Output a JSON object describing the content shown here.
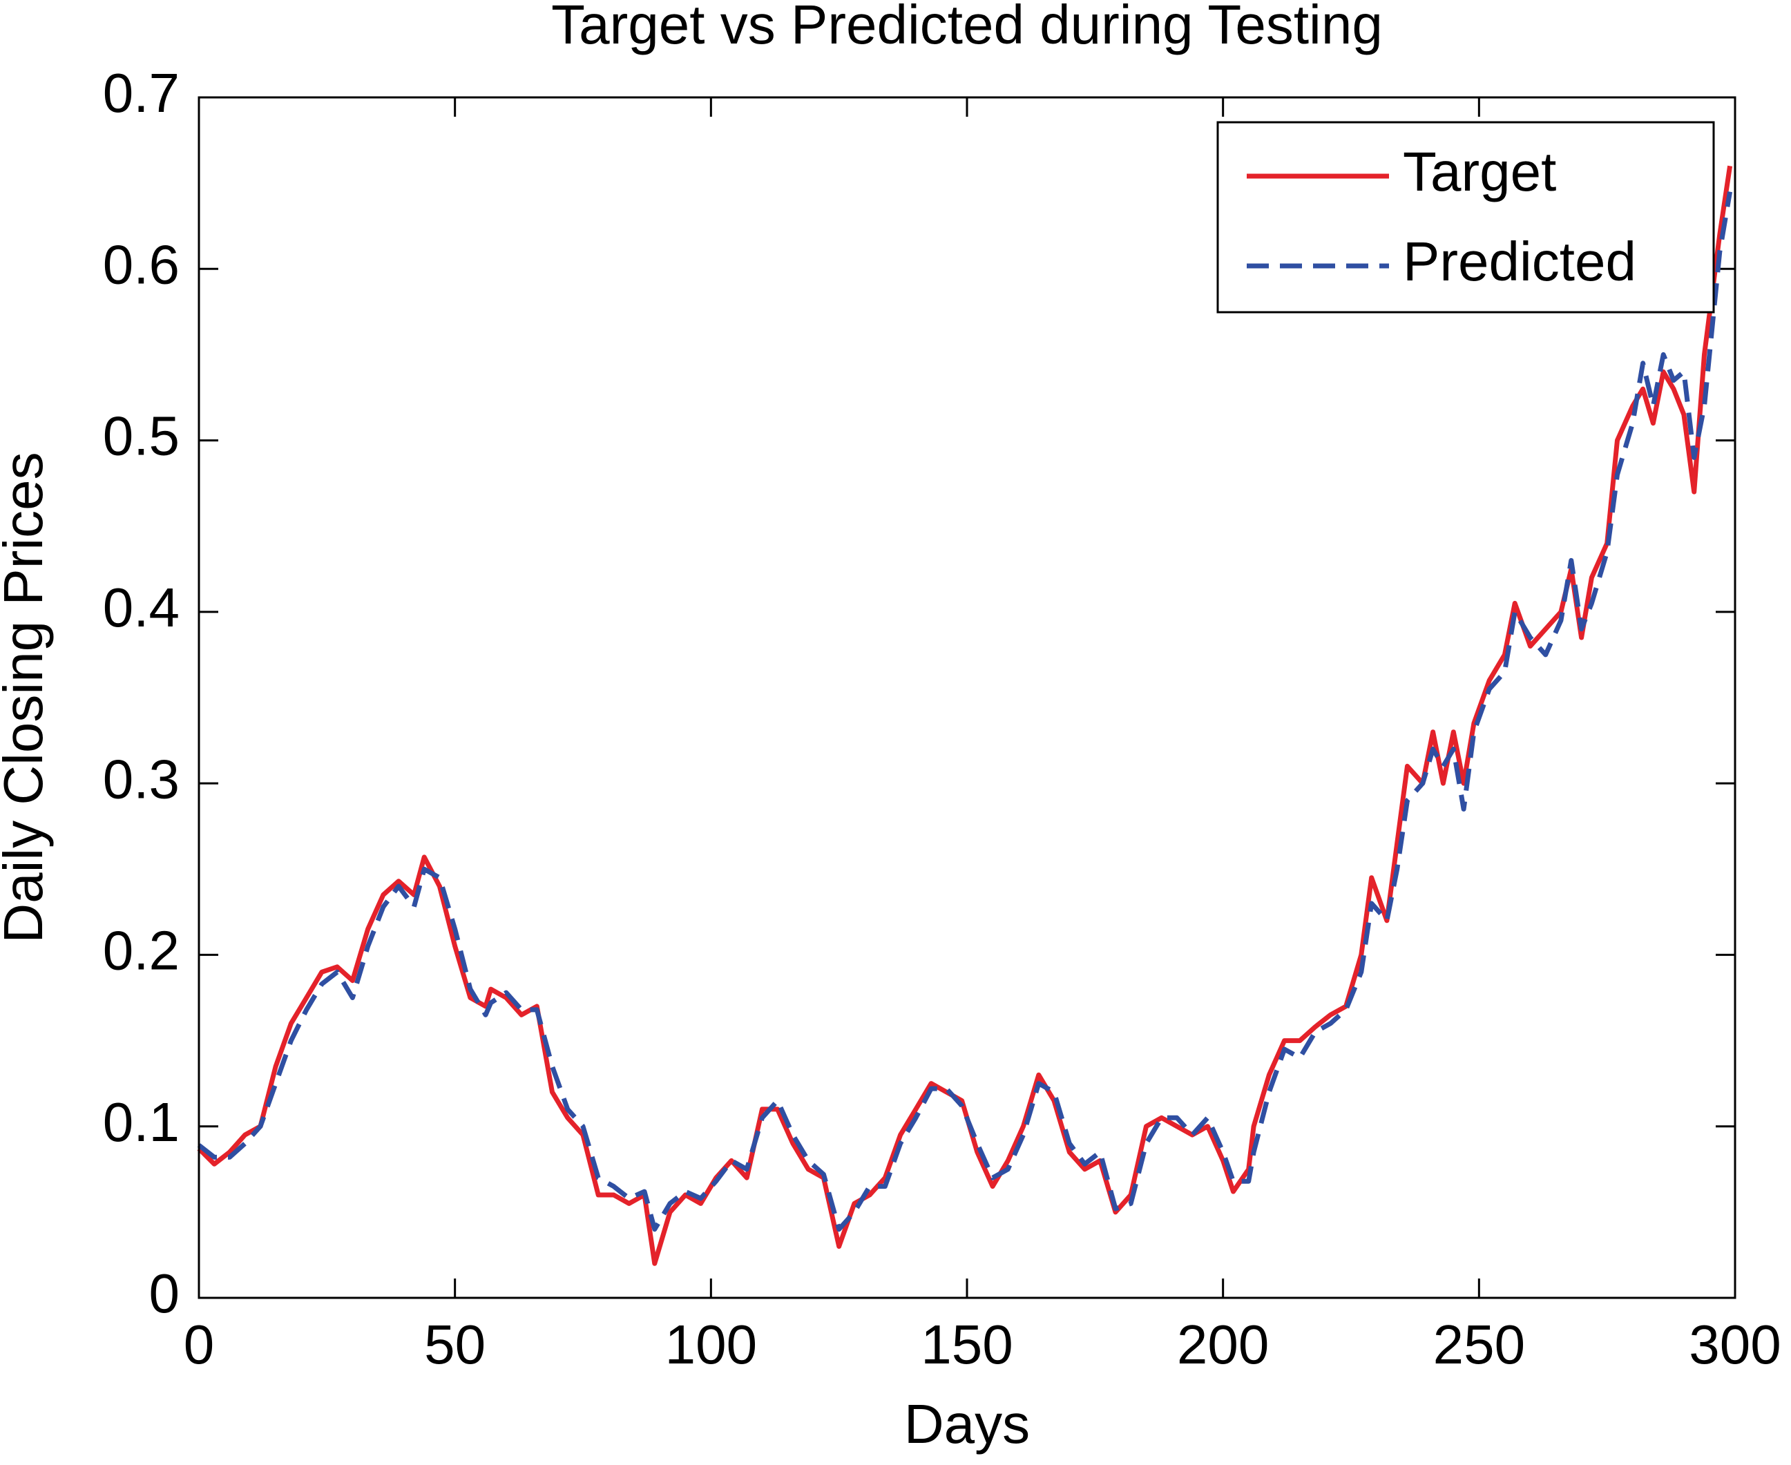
{
  "chart_data": {
    "type": "line",
    "title": "Target vs Predicted during Testing",
    "xlabel": "Days",
    "ylabel": "Daily Closing Prices",
    "x": [
      0,
      3,
      6,
      9,
      12,
      15,
      18,
      21,
      24,
      27,
      30,
      33,
      36,
      39,
      42,
      44,
      47,
      50,
      53,
      56,
      57,
      60,
      63,
      66,
      69,
      72,
      75,
      78,
      81,
      84,
      87,
      89,
      92,
      95,
      98,
      101,
      104,
      107,
      110,
      113,
      116,
      119,
      122,
      125,
      128,
      131,
      134,
      137,
      140,
      143,
      146,
      149,
      152,
      155,
      158,
      161,
      164,
      167,
      170,
      173,
      176,
      179,
      182,
      185,
      188,
      191,
      194,
      197,
      200,
      202,
      205,
      206,
      209,
      212,
      215,
      218,
      221,
      224,
      227,
      229,
      232,
      234,
      236,
      239,
      241,
      243,
      245,
      247,
      249,
      252,
      255,
      257,
      260,
      263,
      266,
      268,
      270,
      272,
      275,
      277,
      280,
      282,
      284,
      286,
      288,
      290,
      292,
      294,
      297,
      299
    ],
    "series": [
      {
        "name": "Target",
        "color": "#e4222a",
        "dash": false,
        "values": [
          0.087,
          0.078,
          0.085,
          0.095,
          0.1,
          0.135,
          0.16,
          0.175,
          0.19,
          0.193,
          0.185,
          0.215,
          0.235,
          0.243,
          0.235,
          0.257,
          0.24,
          0.205,
          0.175,
          0.17,
          0.18,
          0.175,
          0.165,
          0.17,
          0.12,
          0.105,
          0.095,
          0.06,
          0.06,
          0.055,
          0.06,
          0.02,
          0.05,
          0.06,
          0.055,
          0.07,
          0.08,
          0.07,
          0.11,
          0.11,
          0.09,
          0.075,
          0.07,
          0.03,
          0.055,
          0.06,
          0.07,
          0.095,
          0.11,
          0.125,
          0.12,
          0.115,
          0.085,
          0.065,
          0.08,
          0.1,
          0.13,
          0.115,
          0.085,
          0.075,
          0.08,
          0.05,
          0.06,
          0.1,
          0.105,
          0.1,
          0.095,
          0.1,
          0.08,
          0.062,
          0.075,
          0.1,
          0.13,
          0.15,
          0.15,
          0.158,
          0.165,
          0.17,
          0.2,
          0.245,
          0.22,
          0.265,
          0.31,
          0.3,
          0.33,
          0.3,
          0.33,
          0.3,
          0.335,
          0.36,
          0.375,
          0.405,
          0.38,
          0.39,
          0.4,
          0.425,
          0.385,
          0.42,
          0.44,
          0.5,
          0.52,
          0.53,
          0.51,
          0.54,
          0.53,
          0.515,
          0.47,
          0.55,
          0.62,
          0.66
        ]
      },
      {
        "name": "Predicted",
        "color": "#2f4fa2",
        "dash": true,
        "values": [
          0.089,
          0.082,
          0.082,
          0.09,
          0.1,
          0.125,
          0.15,
          0.168,
          0.183,
          0.19,
          0.175,
          0.205,
          0.228,
          0.24,
          0.228,
          0.25,
          0.245,
          0.215,
          0.18,
          0.165,
          0.172,
          0.178,
          0.168,
          0.168,
          0.135,
          0.11,
          0.1,
          0.07,
          0.065,
          0.058,
          0.062,
          0.04,
          0.055,
          0.062,
          0.058,
          0.068,
          0.08,
          0.075,
          0.105,
          0.115,
          0.095,
          0.08,
          0.072,
          0.04,
          0.05,
          0.065,
          0.065,
          0.09,
          0.105,
          0.122,
          0.122,
          0.112,
          0.09,
          0.07,
          0.075,
          0.095,
          0.125,
          0.12,
          0.09,
          0.078,
          0.085,
          0.052,
          0.055,
          0.09,
          0.105,
          0.105,
          0.095,
          0.105,
          0.085,
          0.068,
          0.068,
          0.085,
          0.12,
          0.145,
          0.14,
          0.155,
          0.16,
          0.168,
          0.19,
          0.23,
          0.22,
          0.25,
          0.29,
          0.3,
          0.32,
          0.31,
          0.32,
          0.285,
          0.33,
          0.355,
          0.365,
          0.4,
          0.385,
          0.375,
          0.395,
          0.43,
          0.39,
          0.405,
          0.435,
          0.48,
          0.51,
          0.545,
          0.52,
          0.55,
          0.535,
          0.54,
          0.49,
          0.52,
          0.61,
          0.645
        ]
      }
    ],
    "xlim": [
      0,
      300
    ],
    "xticks": [
      0,
      50,
      100,
      150,
      200,
      250,
      300
    ],
    "ylim": [
      0,
      0.7
    ],
    "yticks": [
      0,
      0.1,
      0.2,
      0.3,
      0.4,
      0.5,
      0.6,
      0.7
    ],
    "grid": false,
    "legend": "upper right"
  }
}
